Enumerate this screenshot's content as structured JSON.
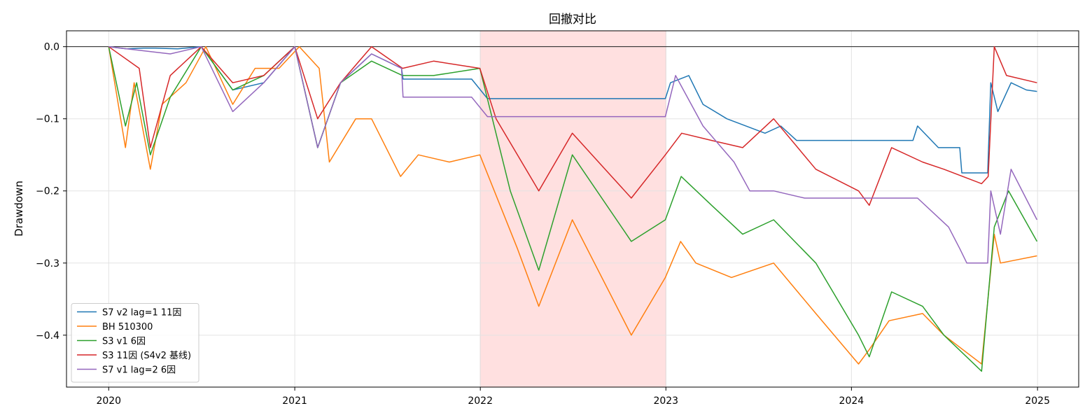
{
  "chart_data": {
    "type": "line",
    "title": "回撤对比",
    "xlabel": "",
    "ylabel": "Drawdown",
    "xlim": [
      "2019-10-10",
      "2025-03-23"
    ],
    "ylim": [
      -0.472,
      0.022
    ],
    "xticks": [
      "2020",
      "2021",
      "2022",
      "2023",
      "2024",
      "2025"
    ],
    "yticks": [
      "0.0",
      "−0.1",
      "−0.2",
      "−0.3",
      "−0.4"
    ],
    "grid": true,
    "legend_position": "lower-left",
    "shaded_region": {
      "start": "2022-01-01",
      "end": "2023-01-01",
      "color": "#ffe0e0"
    },
    "zero_line": true,
    "series": [
      {
        "name": "S7 v2 lag=1 11因",
        "color": "#1f77b4",
        "x": [
          "2020-01-01",
          "2020-02-05",
          "2020-03-10",
          "2020-04-01",
          "2020-05-15",
          "2020-07-01",
          "2020-09-01",
          "2020-11-01",
          "2021-01-01",
          "2021-02-15",
          "2021-04-01",
          "2021-06-01",
          "2021-07-30",
          "2021-08-02",
          "2021-12-15",
          "2022-01-15",
          "2022-07-01",
          "2022-12-31",
          "2023-01-10",
          "2023-02-15",
          "2023-03-15",
          "2023-05-01",
          "2023-07-15",
          "2023-08-15",
          "2023-09-15",
          "2023-11-01",
          "2024-01-01",
          "2024-03-01",
          "2024-05-01",
          "2024-05-10",
          "2024-06-20",
          "2024-08-01",
          "2024-08-05",
          "2024-09-25",
          "2024-10-01",
          "2024-10-15",
          "2024-11-10",
          "2024-12-10",
          "2024-12-31"
        ],
        "y": [
          0.0,
          -0.003,
          -0.002,
          -0.002,
          -0.003,
          0.0,
          -0.06,
          -0.05,
          0.0,
          -0.14,
          -0.05,
          -0.01,
          -0.03,
          -0.045,
          -0.045,
          -0.072,
          -0.072,
          -0.072,
          -0.05,
          -0.04,
          -0.08,
          -0.1,
          -0.12,
          -0.11,
          -0.13,
          -0.13,
          -0.13,
          -0.13,
          -0.13,
          -0.11,
          -0.14,
          -0.14,
          -0.175,
          -0.175,
          -0.05,
          -0.09,
          -0.05,
          -0.06,
          -0.062
        ]
      },
      {
        "name": "BH 510300",
        "color": "#ff7f0e",
        "x": [
          "2020-01-01",
          "2020-02-03",
          "2020-02-20",
          "2020-03-23",
          "2020-04-15",
          "2020-06-01",
          "2020-07-10",
          "2020-09-01",
          "2020-10-15",
          "2020-12-01",
          "2021-01-10",
          "2021-02-18",
          "2021-03-10",
          "2021-05-01",
          "2021-06-01",
          "2021-07-28",
          "2021-09-01",
          "2021-11-01",
          "2021-12-31",
          "2022-03-15",
          "2022-04-26",
          "2022-07-01",
          "2022-10-25",
          "2022-12-31",
          "2023-01-30",
          "2023-03-01",
          "2023-05-10",
          "2023-08-01",
          "2023-10-23",
          "2024-01-15",
          "2024-02-05",
          "2024-03-15",
          "2024-05-20",
          "2024-07-01",
          "2024-09-13",
          "2024-10-08",
          "2024-10-20",
          "2024-12-31"
        ],
        "y": [
          0.0,
          -0.14,
          -0.05,
          -0.17,
          -0.08,
          -0.05,
          0.0,
          -0.08,
          -0.03,
          -0.03,
          0.0,
          -0.03,
          -0.16,
          -0.1,
          -0.1,
          -0.18,
          -0.15,
          -0.16,
          -0.15,
          -0.28,
          -0.36,
          -0.24,
          -0.4,
          -0.32,
          -0.27,
          -0.3,
          -0.32,
          -0.3,
          -0.37,
          -0.44,
          -0.42,
          -0.38,
          -0.37,
          -0.4,
          -0.44,
          -0.26,
          -0.3,
          -0.29
        ]
      },
      {
        "name": "S3 v1 6因",
        "color": "#2ca02c",
        "x": [
          "2020-01-01",
          "2020-02-03",
          "2020-02-25",
          "2020-03-23",
          "2020-05-01",
          "2020-07-01",
          "2020-09-01",
          "2020-11-01",
          "2021-01-01",
          "2021-02-15",
          "2021-04-01",
          "2021-06-01",
          "2021-08-01",
          "2021-10-01",
          "2021-12-31",
          "2022-03-01",
          "2022-04-26",
          "2022-07-01",
          "2022-10-25",
          "2022-12-31",
          "2023-01-31",
          "2023-04-01",
          "2023-06-01",
          "2023-08-01",
          "2023-10-23",
          "2024-01-15",
          "2024-02-05",
          "2024-03-20",
          "2024-05-20",
          "2024-07-01",
          "2024-09-13",
          "2024-10-08",
          "2024-11-05",
          "2024-12-31"
        ],
        "y": [
          0.0,
          -0.11,
          -0.05,
          -0.15,
          -0.07,
          0.0,
          -0.06,
          -0.04,
          0.0,
          -0.14,
          -0.05,
          -0.02,
          -0.04,
          -0.04,
          -0.03,
          -0.2,
          -0.31,
          -0.15,
          -0.27,
          -0.24,
          -0.18,
          -0.22,
          -0.26,
          -0.24,
          -0.3,
          -0.4,
          -0.43,
          -0.34,
          -0.36,
          -0.4,
          -0.45,
          -0.25,
          -0.2,
          -0.27
        ]
      },
      {
        "name": "S3 11因 (S4v2 基线)",
        "color": "#d62728",
        "x": [
          "2020-01-01",
          "2020-03-01",
          "2020-03-23",
          "2020-05-01",
          "2020-07-01",
          "2020-09-01",
          "2020-11-01",
          "2021-01-01",
          "2021-02-15",
          "2021-04-01",
          "2021-06-01",
          "2021-08-01",
          "2021-10-01",
          "2021-12-31",
          "2022-02-01",
          "2022-04-26",
          "2022-07-01",
          "2022-10-25",
          "2022-12-31",
          "2023-02-01",
          "2023-04-01",
          "2023-06-01",
          "2023-08-01",
          "2023-10-23",
          "2024-01-15",
          "2024-02-05",
          "2024-03-20",
          "2024-05-20",
          "2024-07-01",
          "2024-09-13",
          "2024-09-26",
          "2024-10-08",
          "2024-11-01",
          "2024-12-31"
        ],
        "y": [
          0.0,
          -0.03,
          -0.14,
          -0.04,
          0.0,
          -0.05,
          -0.04,
          0.0,
          -0.1,
          -0.05,
          0.0,
          -0.03,
          -0.02,
          -0.03,
          -0.1,
          -0.2,
          -0.12,
          -0.21,
          -0.15,
          -0.12,
          -0.13,
          -0.14,
          -0.1,
          -0.17,
          -0.2,
          -0.22,
          -0.14,
          -0.16,
          -0.17,
          -0.19,
          -0.18,
          0.0,
          -0.04,
          -0.05
        ]
      },
      {
        "name": "S7 v1 lag=2 6因",
        "color": "#9467bd",
        "x": [
          "2020-01-01",
          "2020-05-01",
          "2020-07-01",
          "2020-09-01",
          "2020-11-01",
          "2021-01-01",
          "2021-02-15",
          "2021-04-01",
          "2021-06-01",
          "2021-07-30",
          "2021-08-02",
          "2021-12-15",
          "2022-01-15",
          "2022-07-01",
          "2022-12-31",
          "2023-01-20",
          "2023-03-15",
          "2023-05-15",
          "2023-06-15",
          "2023-08-01",
          "2023-10-01",
          "2024-01-01",
          "2024-03-01",
          "2024-05-10",
          "2024-07-10",
          "2024-08-01",
          "2024-08-15",
          "2024-09-25",
          "2024-10-01",
          "2024-10-20",
          "2024-11-10",
          "2024-12-31"
        ],
        "y": [
          0.0,
          -0.01,
          0.0,
          -0.09,
          -0.05,
          0.0,
          -0.14,
          -0.05,
          -0.01,
          -0.03,
          -0.07,
          -0.07,
          -0.097,
          -0.097,
          -0.097,
          -0.04,
          -0.11,
          -0.16,
          -0.2,
          -0.2,
          -0.21,
          -0.21,
          -0.21,
          -0.21,
          -0.25,
          -0.28,
          -0.3,
          -0.3,
          -0.2,
          -0.26,
          -0.17,
          -0.24
        ]
      }
    ]
  }
}
